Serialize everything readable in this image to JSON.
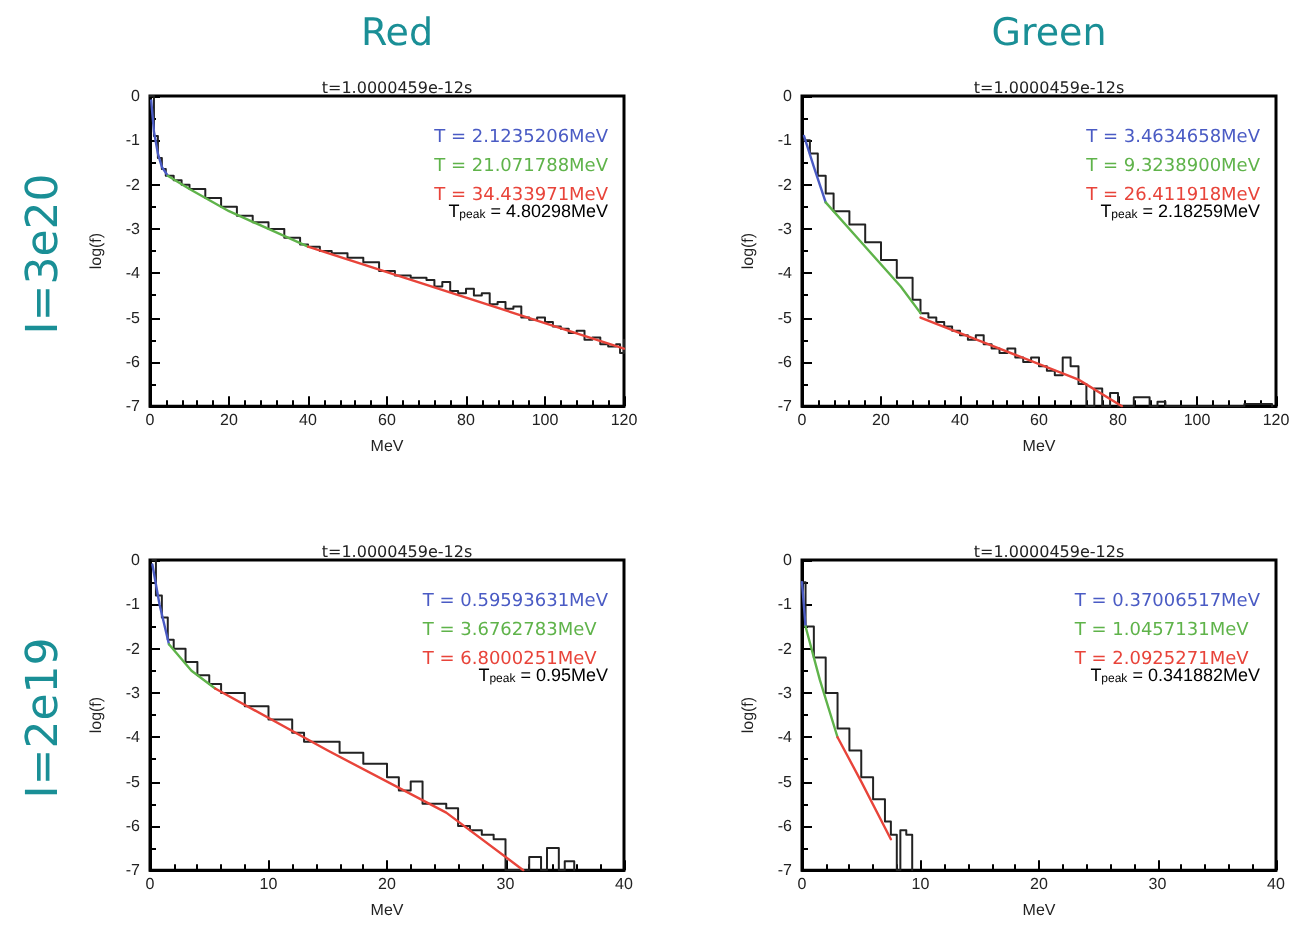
{
  "chart_data": [
    {
      "type": "line",
      "title": "Red",
      "subtitle": "t=1.0000459e-12s",
      "xlabel": "MeV",
      "ylabel": "log(f)",
      "xlim": [
        0,
        120
      ],
      "ylim": [
        -7,
        0
      ],
      "xticks": [
        0,
        20,
        40,
        60,
        80,
        100,
        120
      ],
      "yticks": [
        0,
        -1,
        -2,
        -3,
        -4,
        -5,
        -6,
        -7
      ],
      "grid": false,
      "legend": "top right",
      "marker": "none",
      "annotations": [
        "T$_{peak}$ = 4.80298MeV",
        "I=3e20"
      ],
      "series": [
        {
          "type": "step",
          "color": "#222222",
          "x": [
            0,
            1,
            2,
            3,
            4,
            6,
            8,
            10,
            14,
            18,
            22,
            26,
            30,
            34,
            38,
            40,
            43,
            46,
            50,
            54,
            58,
            60,
            62,
            66,
            70,
            72,
            74,
            76,
            78,
            80,
            82,
            84,
            86,
            88,
            90,
            92,
            94,
            96,
            98,
            100,
            102,
            104,
            106,
            108,
            110,
            112,
            114,
            116,
            118,
            119,
            120
          ],
          "values": [
            0,
            -0.9,
            -1.4,
            -1.65,
            -1.8,
            -1.9,
            -2.0,
            -2.1,
            -2.3,
            -2.5,
            -2.7,
            -2.85,
            -3.0,
            -3.2,
            -3.35,
            -3.4,
            -3.5,
            -3.55,
            -3.65,
            -3.75,
            -3.95,
            -3.95,
            -4.05,
            -4.1,
            -4.15,
            -4.3,
            -4.2,
            -4.4,
            -4.45,
            -4.35,
            -4.5,
            -4.45,
            -4.7,
            -4.65,
            -4.8,
            -4.75,
            -5.0,
            -5.05,
            -5.0,
            -5.1,
            -5.2,
            -5.25,
            -5.35,
            -5.3,
            -5.5,
            -5.45,
            -5.6,
            -5.65,
            -5.6,
            -5.8,
            -5.5
          ]
        },
        {
          "name": "T = 2.1235206MeV",
          "color": "#4a5bc4",
          "x": [
            0.3,
            1,
            2,
            3,
            4.5
          ],
          "values": [
            -0.1,
            -0.8,
            -1.3,
            -1.6,
            -1.8
          ]
        },
        {
          "name": "T = 21.071788MeV",
          "color": "#5fb34a",
          "x": [
            4.5,
            10,
            20,
            30,
            40
          ],
          "values": [
            -1.8,
            -2.1,
            -2.6,
            -3.0,
            -3.4
          ]
        },
        {
          "name": "T = 34.433971MeV",
          "color": "#e8443a",
          "x": [
            40,
            120
          ],
          "values": [
            -3.4,
            -5.7
          ]
        }
      ]
    },
    {
      "type": "line",
      "title": "Green",
      "subtitle": "t=1.0000459e-12s",
      "xlabel": "MeV",
      "ylabel": "log(f)",
      "xlim": [
        0,
        120
      ],
      "ylim": [
        -7,
        0
      ],
      "xticks": [
        0,
        20,
        40,
        60,
        80,
        100,
        120
      ],
      "yticks": [
        0,
        -1,
        -2,
        -3,
        -4,
        -5,
        -6,
        -7
      ],
      "grid": false,
      "legend": "top right",
      "marker": "none",
      "annotations": [
        "T$_{peak}$ = 2.18259MeV"
      ],
      "series": [
        {
          "type": "step",
          "color": "#222222",
          "x": [
            0.5,
            2,
            4,
            6,
            8,
            12,
            16,
            20,
            24,
            28,
            30,
            32,
            34,
            36,
            38,
            40,
            42,
            44,
            46,
            48,
            50,
            52,
            54,
            56,
            58,
            60,
            62,
            64,
            66,
            68,
            70,
            72,
            74,
            76,
            78,
            80,
            82,
            84,
            86,
            88,
            90,
            92,
            110,
            112,
            118,
            119
          ],
          "values": [
            -1,
            -1.3,
            -1.8,
            -2.2,
            -2.6,
            -2.9,
            -3.3,
            -3.7,
            -4.1,
            -4.6,
            -4.9,
            -5.0,
            -5.1,
            -5.2,
            -5.3,
            -5.4,
            -5.5,
            -5.4,
            -5.6,
            -5.7,
            -5.8,
            -5.7,
            -5.9,
            -6.0,
            -5.9,
            -6.1,
            -6.2,
            -6.3,
            -5.9,
            -6.1,
            -6.5,
            -7,
            -6.6,
            -7,
            -6.7,
            -7,
            -7,
            -6.8,
            -6.8,
            -7,
            -6.9,
            -7,
            -7,
            -6.95,
            -6.95,
            -7
          ]
        },
        {
          "name": "T = 3.4634658MeV",
          "color": "#4a5bc4",
          "x": [
            0.5,
            3,
            6
          ],
          "values": [
            -0.9,
            -1.6,
            -2.4
          ]
        },
        {
          "name": "T = 9.3238900MeV",
          "color": "#5fb34a",
          "x": [
            6,
            15,
            25,
            30
          ],
          "values": [
            -2.4,
            -3.3,
            -4.3,
            -4.9
          ]
        },
        {
          "name": "T = 26.411918MeV",
          "color": "#e8443a",
          "x": [
            30,
            50,
            70,
            81
          ],
          "values": [
            -5.0,
            -5.7,
            -6.4,
            -7
          ]
        }
      ]
    },
    {
      "type": "line",
      "subtitle": "t=1.0000459e-12s",
      "xlabel": "MeV",
      "ylabel": "log(f)",
      "xlim": [
        0,
        40
      ],
      "ylim": [
        -7,
        0
      ],
      "xticks": [
        0,
        10,
        20,
        30,
        40
      ],
      "yticks": [
        0,
        -1,
        -2,
        -3,
        -4,
        -5,
        -6,
        -7
      ],
      "grid": false,
      "legend": "top right",
      "marker": "none",
      "annotations": [
        "T$_{peak}$ = 0.95MeV",
        "I=2e19"
      ],
      "series": [
        {
          "type": "step",
          "color": "#222222",
          "x": [
            0.2,
            0.5,
            1,
            1.5,
            2,
            3,
            4,
            5,
            6,
            8,
            10,
            12,
            13,
            14,
            16,
            18,
            20,
            21,
            22,
            23,
            24,
            25,
            26,
            27,
            28,
            29,
            30,
            31,
            32,
            33,
            33.5,
            34.5,
            35,
            35.8
          ],
          "values": [
            0,
            -0.8,
            -1.3,
            -1.8,
            -2.0,
            -2.3,
            -2.6,
            -2.8,
            -3.0,
            -3.3,
            -3.6,
            -3.9,
            -4.1,
            -4.1,
            -4.35,
            -4.6,
            -4.9,
            -5.2,
            -5.0,
            -5.5,
            -5.5,
            -5.6,
            -6.0,
            -6.1,
            -6.2,
            -6.3,
            -7,
            -7,
            -6.7,
            -7,
            -6.5,
            -7,
            -6.8,
            -7
          ]
        },
        {
          "name": "T = 0.59593631MeV",
          "color": "#4a5bc4",
          "x": [
            0.2,
            0.8,
            1.6
          ],
          "values": [
            -0.1,
            -1.0,
            -1.9
          ]
        },
        {
          "name": "T = 3.6762783MeV",
          "color": "#5fb34a",
          "x": [
            1.6,
            3.5,
            5.5
          ],
          "values": [
            -1.9,
            -2.5,
            -2.9
          ]
        },
        {
          "name": "T = 6.8000251MeV",
          "color": "#e8443a",
          "x": [
            5.5,
            15,
            25,
            31.5
          ],
          "values": [
            -2.9,
            -4.3,
            -5.7,
            -7
          ]
        }
      ]
    },
    {
      "type": "line",
      "subtitle": "t=1.0000459e-12s",
      "xlabel": "MeV",
      "ylabel": "log(f)",
      "xlim": [
        0,
        40
      ],
      "ylim": [
        -7,
        0
      ],
      "xticks": [
        0,
        10,
        20,
        30,
        40
      ],
      "yticks": [
        0,
        -1,
        -2,
        -3,
        -4,
        -5,
        -6,
        -7
      ],
      "grid": false,
      "legend": "top right",
      "marker": "none",
      "annotations": [
        "T$_{peak}$ = 0.341882MeV"
      ],
      "series": [
        {
          "type": "step",
          "color": "#222222",
          "x": [
            0,
            0.3,
            1,
            2,
            3,
            4,
            5,
            6,
            7,
            7.5,
            8,
            8.3,
            8.8,
            9.3
          ],
          "values": [
            -0.5,
            -1.5,
            -2.2,
            -3.0,
            -3.8,
            -4.3,
            -4.9,
            -5.4,
            -5.9,
            -6.2,
            -7,
            -6.1,
            -6.2,
            -7
          ]
        },
        {
          "name": "T = 0.37006517MeV",
          "color": "#4a5bc4",
          "x": [
            0,
            0.3
          ],
          "values": [
            -0.5,
            -1.5
          ]
        },
        {
          "name": "T = 1.0457131MeV",
          "color": "#5fb34a",
          "x": [
            0.3,
            1.5,
            3
          ],
          "values": [
            -1.5,
            -2.7,
            -4.0
          ]
        },
        {
          "name": "T = 2.0925271MeV",
          "color": "#e8443a",
          "x": [
            3,
            5,
            7.5
          ],
          "values": [
            -4.0,
            -5.0,
            -6.3
          ]
        }
      ]
    }
  ]
}
